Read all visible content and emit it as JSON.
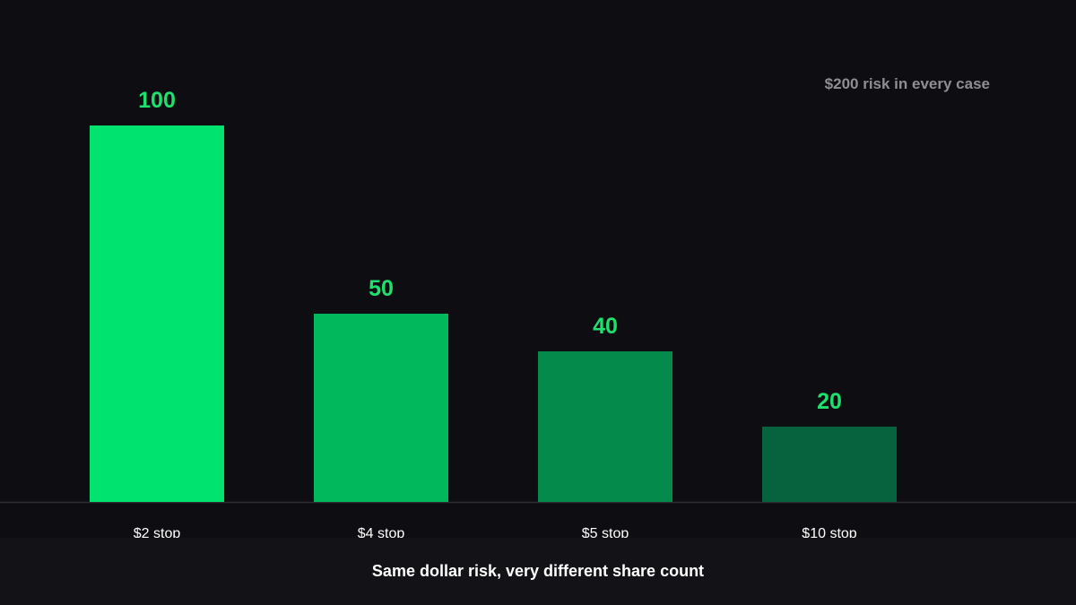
{
  "chart_data": {
    "type": "bar",
    "categories": [
      "$2 stop",
      "$4 stop",
      "$5 stop",
      "$10 stop"
    ],
    "values": [
      100,
      50,
      40,
      20
    ],
    "bar_colors": [
      "#00e46f",
      "#02b85c",
      "#048b4b",
      "#06633d"
    ],
    "value_label_color": "#1ee06e",
    "category_label_color": "#ffffff",
    "axis_color": "#2e2d33",
    "ylim": [
      0,
      100
    ],
    "grid": false,
    "annotation": "$200 risk in every case",
    "caption": "Same dollar risk, very different share count"
  },
  "colors": {
    "background": "#0e0d12",
    "caption_bar": "#131317",
    "annotation_text": "#8e8e93"
  }
}
